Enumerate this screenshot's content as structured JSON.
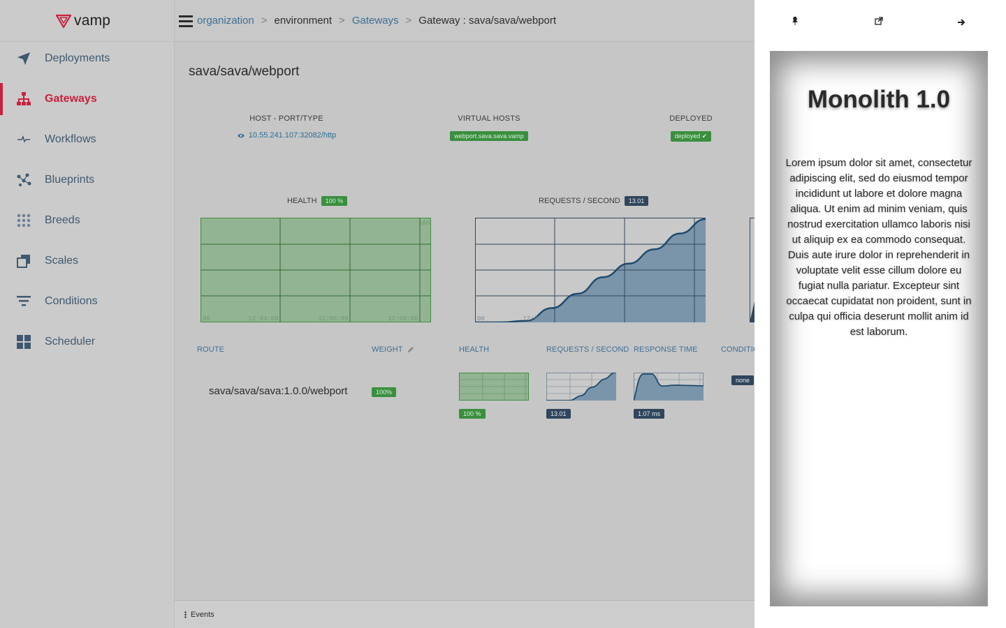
{
  "app": {
    "logo_text": "vamp"
  },
  "sidebar": {
    "items": [
      {
        "label": "Deployments",
        "icon": "paper-plane-icon"
      },
      {
        "label": "Gateways",
        "icon": "sitemap-icon",
        "active": true
      },
      {
        "label": "Workflows",
        "icon": "pulse-icon"
      },
      {
        "label": "Blueprints",
        "icon": "nodes-icon"
      },
      {
        "label": "Breeds",
        "icon": "dots-grid-icon"
      },
      {
        "label": "Scales",
        "icon": "stacked-squares-icon"
      },
      {
        "label": "Conditions",
        "icon": "filter-lines-icon"
      },
      {
        "label": "Scheduler",
        "icon": "grid-squares-icon"
      }
    ]
  },
  "breadcrumb": {
    "organization": "organization",
    "sep": ">",
    "environment": "environment",
    "gateways": "Gateways",
    "current": "Gateway : sava/sava/webport"
  },
  "gateway": {
    "title": "sava/sava/webport",
    "host_header": "HOST - PORT/TYPE",
    "host_value": "10.55.241.107:32082/http",
    "vhosts_header": "VIRTUAL HOSTS",
    "vhosts_value": "webport.sava.sava.vamp",
    "deployed_header": "DEPLOYED",
    "deployed_value": "deployed"
  },
  "charts": {
    "health_label": "HEALTH",
    "health_value": "100 %",
    "rps_label": "REQUESTS / SECOND",
    "rps_value": "13.01"
  },
  "chart_data": [
    {
      "type": "area",
      "title": "HEALTH",
      "x": [
        "12:04:00",
        "12:06:00",
        "12:08:00"
      ],
      "series": [
        {
          "values": [
            100,
            100,
            100
          ]
        }
      ],
      "ylim": [
        0,
        100
      ],
      "y_tick_labels": [
        "00",
        "100"
      ],
      "x_tick_labels": [
        "12:04:00",
        "12:06:00",
        "12:08:00"
      ],
      "grid": true,
      "fill_color": "#93b493"
    },
    {
      "type": "area",
      "title": "REQUESTS / SECOND",
      "x": [
        "12:03:30",
        "12:04:00",
        "12:04:30",
        "12:05:00",
        "12:05:30",
        "12:06:00",
        "12:06:30",
        "12:07:00",
        "12:07:30",
        "12:08:00"
      ],
      "series": [
        {
          "values": [
            0,
            0,
            0.2,
            1.8,
            3.6,
            5.7,
            7.4,
            9.2,
            11.2,
            13.01
          ]
        }
      ],
      "x_tick_labels": [
        "12:04:00"
      ],
      "y_tick_labels": [
        "00"
      ],
      "grid": true,
      "fill_color": "#7a95aa"
    }
  ],
  "route_table": {
    "headers": {
      "route": "ROUTE",
      "weight": "WEIGHT",
      "health": "HEALTH",
      "rps": "REQUESTS / SECOND",
      "response_time": "RESPONSE TIME",
      "conditions": "CONDITIO"
    },
    "rows": [
      {
        "route": "sava/sava/sava:1.0.0/webport",
        "weight": "100%",
        "health": "100 %",
        "rps": "13.01",
        "response_time": "1.07 ms",
        "condition": "none"
      }
    ]
  },
  "events": {
    "label": "Events"
  },
  "panel": {
    "title": "Monolith 1.0",
    "body": "Lorem ipsum dolor sit amet, consectetur adipiscing elit, sed do eiusmod tempor incididunt ut labore et dolore magna aliqua. Ut enim ad minim veniam, quis nostrud exercitation ullamco laboris nisi ut aliquip ex ea commodo consequat. Duis aute irure dolor in reprehenderit in voluptate velit esse cillum dolore eu fugiat nulla pariatur. Excepteur sint occaecat cupidatat non proident, sunt in culpa qui officia deserunt mollit anim id est laborum.",
    "tools": [
      "pin-icon",
      "external-link-icon",
      "arrow-right-icon"
    ]
  },
  "colors": {
    "accent": "#c8213d",
    "link": "#3c6f96",
    "health_green": "#3a8f3e",
    "series_dark": "#2f465c"
  }
}
